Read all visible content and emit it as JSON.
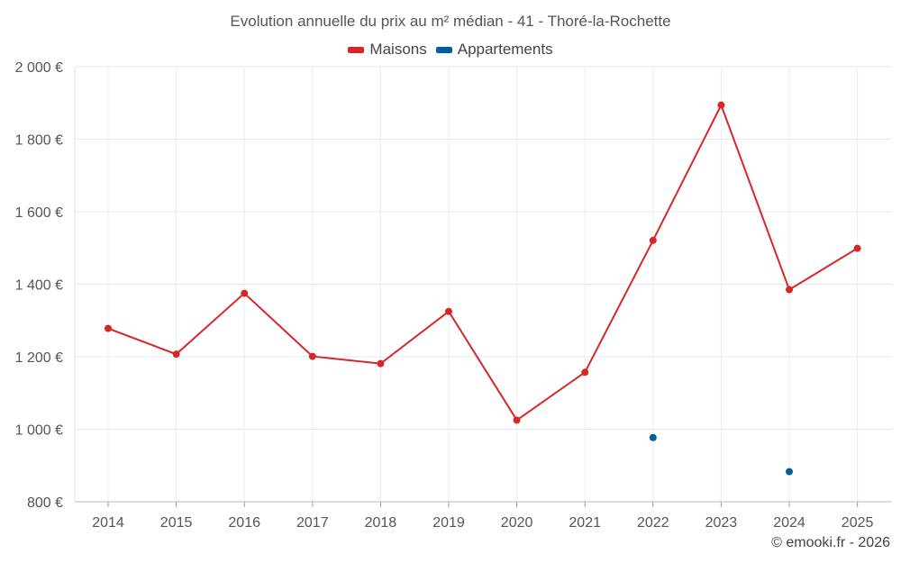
{
  "chart_data": {
    "type": "line",
    "title": "Evolution annuelle du prix au m² médian - 41 - Thoré-la-Rochette",
    "x": [
      "2014",
      "2015",
      "2016",
      "2017",
      "2018",
      "2019",
      "2020",
      "2021",
      "2022",
      "2023",
      "2024",
      "2025"
    ],
    "y_tick_labels": [
      "800 €",
      "1 000 €",
      "1 200 €",
      "1 400 €",
      "1 600 €",
      "1 800 €",
      "2 000 €"
    ],
    "y_ticks": [
      800,
      1000,
      1200,
      1400,
      1600,
      1800,
      2000
    ],
    "ylim": [
      800,
      2000
    ],
    "grid": true,
    "legend_position": "top-center",
    "series": [
      {
        "name": "Maisons",
        "color": "#d62728",
        "values": [
          1278,
          1207,
          1375,
          1201,
          1181,
          1325,
          1025,
          1157,
          1521,
          1894,
          1385,
          1499
        ]
      },
      {
        "name": "Appartements",
        "color": "#005f9e",
        "values": [
          null,
          null,
          null,
          null,
          null,
          null,
          null,
          null,
          977,
          null,
          883,
          null
        ]
      }
    ]
  },
  "credit": "© emooki.fr - 2026"
}
